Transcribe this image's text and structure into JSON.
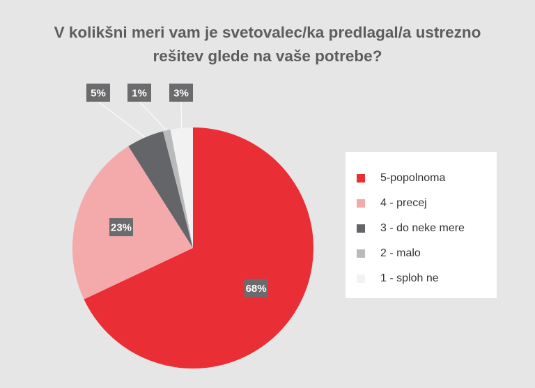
{
  "chart_data": {
    "type": "pie",
    "title_lines": [
      "V kolikšni meri vam je svetovalec/ka predlagal/a ustrezno",
      "rešitev glede na vaše potrebe?"
    ],
    "legend_position": "right",
    "slices": [
      {
        "label": "5-popolnoma",
        "value": 68,
        "value_label": "68%",
        "color": "#ea2e35"
      },
      {
        "label": "4 - precej",
        "value": 23,
        "value_label": "23%",
        "color": "#f4a9ab"
      },
      {
        "label": "3 - do neke mere",
        "value": 5,
        "value_label": "5%",
        "color": "#646569"
      },
      {
        "label": "2 - malo",
        "value": 1,
        "value_label": "1%",
        "color": "#b9babc"
      },
      {
        "label": "1 - sploh ne",
        "value": 3,
        "value_label": "3%",
        "color": "#f2f2f2"
      }
    ],
    "label_box_color": "#6b6b6e"
  }
}
